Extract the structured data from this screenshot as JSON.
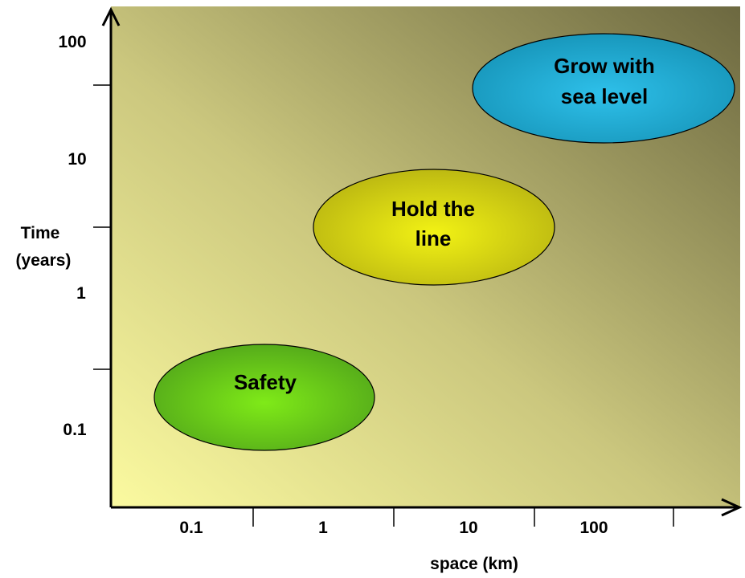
{
  "diagram": {
    "x_axis": {
      "label": "space (km)",
      "ticks": [
        "0.1",
        "1",
        "10",
        "100"
      ]
    },
    "y_axis": {
      "label_line1": "Time",
      "label_line2": "(years)",
      "ticks": [
        "100",
        "10",
        "1",
        "0.1"
      ]
    },
    "regions": [
      {
        "id": "safety",
        "lines": [
          "Safety"
        ],
        "color": "#66cc11"
      },
      {
        "id": "hold",
        "lines": [
          "Hold the",
          "line"
        ],
        "color": "#cccc11"
      },
      {
        "id": "grow",
        "lines": [
          "Grow with",
          "sea level"
        ],
        "color": "#22aacc"
      }
    ],
    "colors": {
      "background_light": "#f8f79a",
      "background_dark": "#706b42",
      "axis": "#000000"
    }
  }
}
